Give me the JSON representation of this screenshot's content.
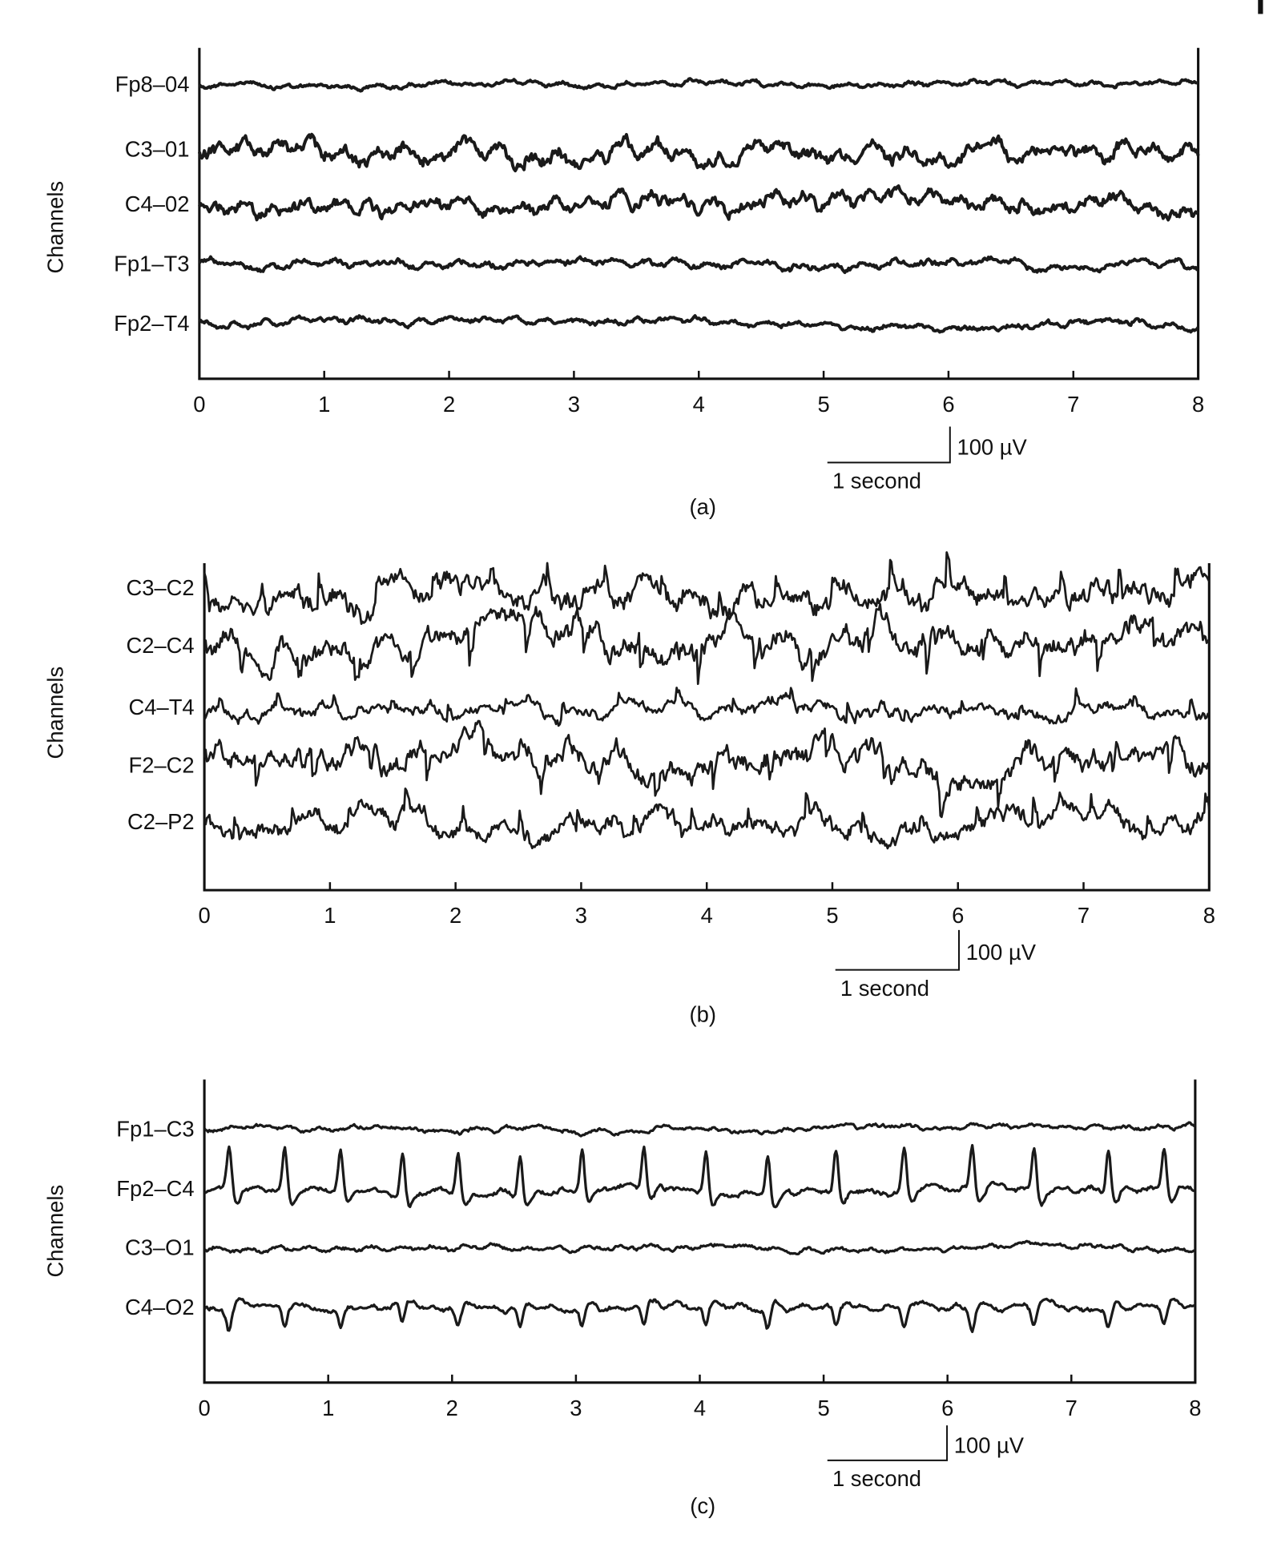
{
  "chart_data": [
    {
      "type": "line",
      "panel_label": "(a)",
      "ylabel": "Channels",
      "channels": [
        "Fp8–04",
        "C3–01",
        "C4–02",
        "Fp1–T3",
        "Fp2–T4"
      ],
      "xlim": [
        0,
        8
      ],
      "xticks": [
        "0",
        "1",
        "2",
        "3",
        "4",
        "5",
        "6",
        "7",
        "8"
      ],
      "scale_bar": {
        "time": "1 second",
        "amplitude": "100 µV"
      }
    },
    {
      "type": "line",
      "panel_label": "(b)",
      "ylabel": "Channels",
      "channels": [
        "C3–C2",
        "C2–C4",
        "C4–T4",
        "F2–C2",
        "C2–P2"
      ],
      "xlim": [
        0,
        8
      ],
      "xticks": [
        "0",
        "1",
        "2",
        "3",
        "4",
        "5",
        "6",
        "7",
        "8"
      ],
      "scale_bar": {
        "time": "1 second",
        "amplitude": "100 µV"
      }
    },
    {
      "type": "line",
      "panel_label": "(c)",
      "ylabel": "Channels",
      "channels": [
        "Fp1–C3",
        "Fp2–C4",
        "C3–O1",
        "C4–O2"
      ],
      "xlim": [
        0,
        8
      ],
      "xticks": [
        "0",
        "1",
        "2",
        "3",
        "4",
        "5",
        "6",
        "7",
        "8"
      ],
      "spike_times_s": [
        0.2,
        0.65,
        1.1,
        1.6,
        2.05,
        2.55,
        3.05,
        3.55,
        4.05,
        4.55,
        5.1,
        5.65,
        6.2,
        6.7,
        7.3,
        7.75
      ],
      "scale_bar": {
        "time": "1 second",
        "amplitude": "100 µV"
      }
    }
  ],
  "colors": {
    "trace": "#1a1a1a",
    "axis": "#111111"
  }
}
